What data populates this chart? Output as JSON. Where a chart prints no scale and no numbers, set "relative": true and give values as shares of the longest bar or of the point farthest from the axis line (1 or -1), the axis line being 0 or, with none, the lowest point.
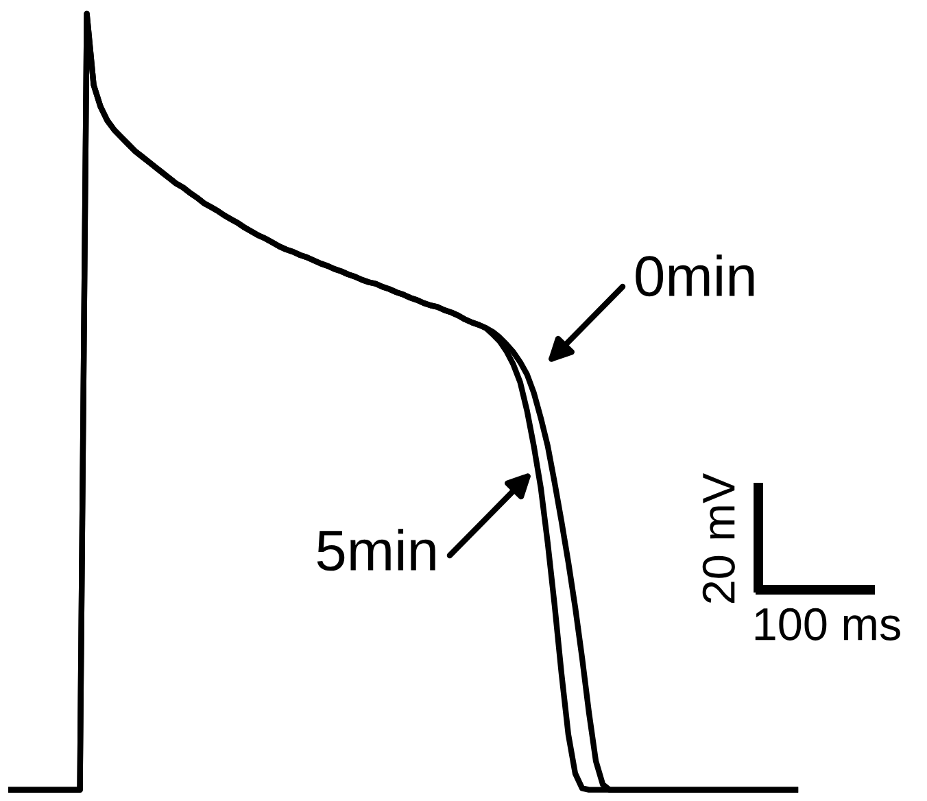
{
  "chart_data": {
    "type": "line",
    "relative": true,
    "line_style": "solid",
    "marker": "none",
    "categories": [
      null,
      null,
      null,
      null,
      null,
      null,
      null,
      null,
      null,
      null,
      null,
      null,
      null,
      null,
      null,
      null,
      null,
      null,
      null,
      null,
      null,
      null,
      null,
      null,
      null,
      null,
      null,
      null,
      null,
      null,
      null,
      null,
      null,
      null,
      null,
      null,
      null,
      null,
      null,
      null,
      null,
      null,
      null,
      null,
      null,
      null,
      null,
      null,
      null,
      null,
      null,
      null,
      null,
      null,
      null,
      null,
      null,
      null,
      null,
      null,
      null,
      null,
      null,
      null,
      null,
      null,
      null,
      null,
      null,
      null,
      null,
      null,
      null,
      null,
      null,
      null,
      null,
      null,
      null,
      null,
      null,
      null,
      null,
      null,
      null,
      null,
      null,
      null,
      null,
      null,
      null,
      null,
      null,
      null,
      null,
      null,
      null,
      null,
      null,
      null,
      null,
      null,
      null,
      null,
      null,
      null,
      null,
      null,
      null,
      null,
      null,
      null,
      null,
      null,
      null
    ],
    "series": [
      {
        "name": "0min",
        "color": "#000000",
        "values": [
          0,
          0,
          0,
          0,
          0,
          0,
          0,
          0,
          0,
          0,
          0,
          1.0,
          0.908,
          0.88,
          0.862,
          0.85,
          0.841,
          0.832,
          0.823,
          0.816,
          0.809,
          0.802,
          0.795,
          0.788,
          0.781,
          0.776,
          0.769,
          0.763,
          0.756,
          0.751,
          0.746,
          0.74,
          0.735,
          0.73,
          0.724,
          0.719,
          0.714,
          0.71,
          0.705,
          0.7,
          0.696,
          0.693,
          0.689,
          0.686,
          0.682,
          0.678,
          0.675,
          0.671,
          0.668,
          0.664,
          0.661,
          0.657,
          0.654,
          0.652,
          0.648,
          0.645,
          0.641,
          0.638,
          0.634,
          0.631,
          0.627,
          0.624,
          0.622,
          0.618,
          0.615,
          0.611,
          0.606,
          0.602,
          0.599,
          0.595,
          0.59,
          0.583,
          0.574,
          0.564,
          0.551,
          0.535,
          0.511,
          0.479,
          0.443,
          0.396,
          0.346,
          0.293,
          0.235,
          0.17,
          0.099,
          0.037,
          0.007,
          0,
          0,
          0,
          0,
          0,
          0,
          0,
          0,
          0,
          0,
          0,
          0,
          0,
          0,
          0,
          0,
          0,
          0,
          0,
          0,
          0,
          0,
          0,
          0,
          0,
          0,
          0,
          0
        ]
      },
      {
        "name": "5min",
        "color": "#000000",
        "values": [
          0,
          0,
          0,
          0,
          0,
          0,
          0,
          0,
          0,
          0,
          0,
          1.0,
          0.908,
          0.88,
          0.862,
          0.85,
          0.841,
          0.832,
          0.823,
          0.816,
          0.809,
          0.802,
          0.795,
          0.788,
          0.781,
          0.776,
          0.769,
          0.763,
          0.756,
          0.751,
          0.746,
          0.74,
          0.735,
          0.73,
          0.724,
          0.719,
          0.714,
          0.71,
          0.705,
          0.7,
          0.696,
          0.693,
          0.689,
          0.686,
          0.682,
          0.678,
          0.675,
          0.671,
          0.668,
          0.664,
          0.661,
          0.657,
          0.654,
          0.652,
          0.648,
          0.645,
          0.641,
          0.638,
          0.634,
          0.631,
          0.627,
          0.624,
          0.622,
          0.618,
          0.615,
          0.611,
          0.606,
          0.602,
          0.599,
          0.595,
          0.587,
          0.578,
          0.565,
          0.548,
          0.525,
          0.488,
          0.442,
          0.389,
          0.318,
          0.238,
          0.15,
          0.071,
          0.021,
          0.002,
          0,
          0,
          0,
          0,
          0,
          0,
          0,
          0,
          0,
          0,
          0,
          0,
          0,
          0,
          0,
          0,
          0,
          0,
          0,
          0,
          0,
          0,
          0,
          0,
          0,
          0,
          0,
          0,
          0,
          0,
          0
        ]
      }
    ],
    "annotations": [
      "20 mV",
      "100 ms"
    ]
  }
}
